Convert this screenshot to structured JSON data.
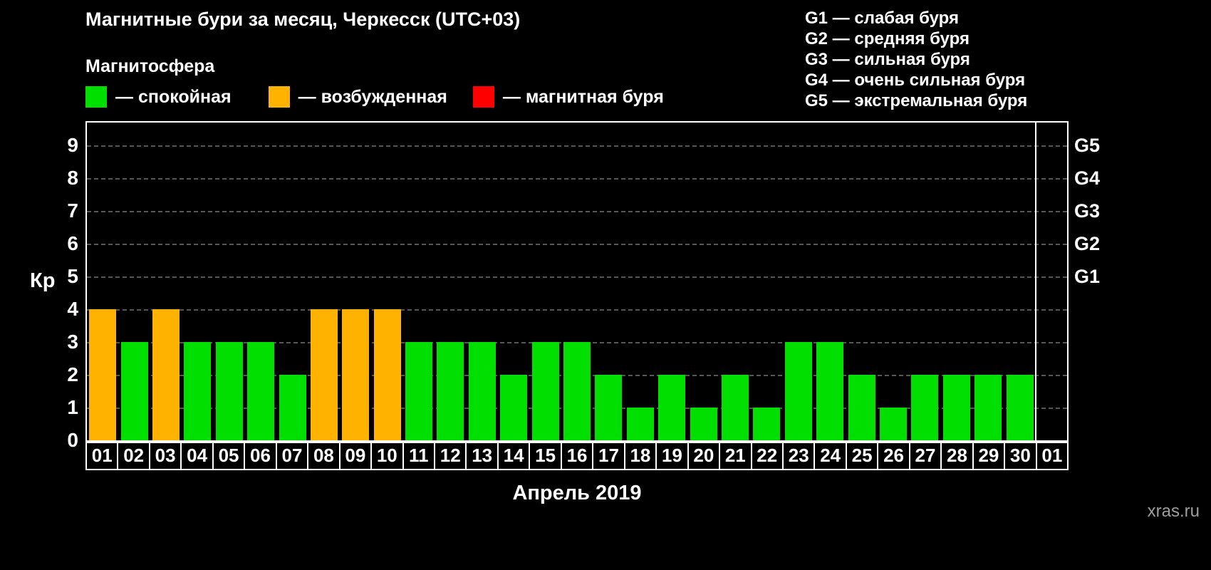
{
  "title": "Магнитные бури за месяц, Черкесск (UTC+03)",
  "watermark": "xras.ru",
  "legend": {
    "heading": "Магнитосфера",
    "items": [
      {
        "label": "— спокойная",
        "status": "quiet",
        "color": "#00df00"
      },
      {
        "label": "— возбужденная",
        "status": "excited",
        "color": "#ffb200"
      },
      {
        "label": "— магнитная буря",
        "status": "storm",
        "color": "#ff0000"
      }
    ]
  },
  "g_legend": [
    "G1 — слабая буря",
    "G2 — средняя буря",
    "G3 — сильная буря",
    "G4 — очень сильная буря",
    "G5 — экстремальная буря"
  ],
  "chart_data": {
    "type": "bar",
    "title": "Магнитные бури за месяц, Черкесск (UTC+03)",
    "xlabel": "Апрель 2019",
    "ylabel": "Кр",
    "ylim": [
      0,
      9
    ],
    "yticks": [
      0,
      1,
      2,
      3,
      4,
      5,
      6,
      7,
      8,
      9
    ],
    "grid": true,
    "categories": [
      "01",
      "02",
      "03",
      "04",
      "05",
      "06",
      "07",
      "08",
      "09",
      "10",
      "11",
      "12",
      "13",
      "14",
      "15",
      "16",
      "17",
      "18",
      "19",
      "20",
      "21",
      "22",
      "23",
      "24",
      "25",
      "26",
      "27",
      "28",
      "29",
      "30",
      "01"
    ],
    "values": [
      4,
      3,
      4,
      3,
      3,
      3,
      2,
      4,
      4,
      4,
      3,
      3,
      3,
      2,
      3,
      3,
      2,
      1,
      2,
      1,
      2,
      1,
      3,
      3,
      2,
      1,
      2,
      2,
      2,
      2,
      null
    ],
    "status": [
      "excited",
      "quiet",
      "excited",
      "quiet",
      "quiet",
      "quiet",
      "quiet",
      "excited",
      "excited",
      "excited",
      "quiet",
      "quiet",
      "quiet",
      "quiet",
      "quiet",
      "quiet",
      "quiet",
      "quiet",
      "quiet",
      "quiet",
      "quiet",
      "quiet",
      "quiet",
      "quiet",
      "quiet",
      "quiet",
      "quiet",
      "quiet",
      "quiet",
      "quiet",
      null
    ],
    "status_colors": {
      "quiet": "#00df00",
      "excited": "#ffb200",
      "storm": "#ff0000"
    },
    "right_axis": [
      {
        "label": "G1",
        "value": 5
      },
      {
        "label": "G2",
        "value": 6
      },
      {
        "label": "G3",
        "value": 7
      },
      {
        "label": "G4",
        "value": 8
      },
      {
        "label": "G5",
        "value": 9
      }
    ],
    "legend_position": "top"
  }
}
